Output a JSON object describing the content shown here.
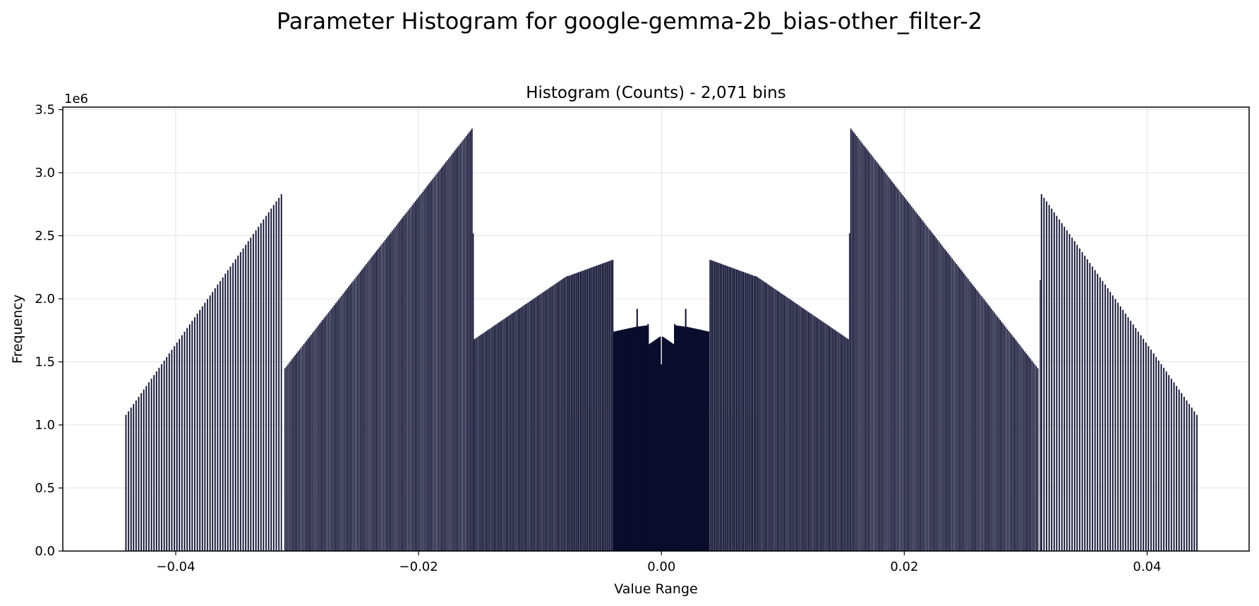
{
  "figure": {
    "suptitle": "Parameter Histogram for google-gemma-2b_bias-other_filter-2"
  },
  "chart_data": {
    "type": "bar",
    "title": "Histogram (Counts) - 2,071 bins",
    "xlabel": "Value Range",
    "ylabel": "Frequency",
    "y_offset_text": "1e6",
    "xlim": [
      -0.0493,
      0.0484
    ],
    "ylim": [
      0,
      3520000
    ],
    "xticks": [
      -0.04,
      -0.02,
      0.0,
      0.02,
      0.04
    ],
    "xtick_labels": [
      "−0.04",
      "−0.02",
      "0.00",
      "0.02",
      "0.04"
    ],
    "yticks": [
      0,
      500000,
      1000000,
      1500000,
      2000000,
      2500000,
      3000000,
      3500000
    ],
    "ytick_labels": [
      "0.0",
      "0.5",
      "1.0",
      "1.5",
      "2.0",
      "2.5",
      "3.0",
      "3.5"
    ],
    "grid": true,
    "bar_color": "#0b0c2e",
    "bar_edge_color": "#b8b8c4",
    "segments": [
      {
        "x_start": -0.0441,
        "x_end": -0.0313,
        "y_start": 1080000,
        "y_end": 2830000,
        "bars": 62,
        "density": "sparse"
      },
      {
        "x_start": -0.0313,
        "x_end": -0.0312,
        "y_start": 2150000,
        "y_end": 2150000,
        "bars": 1,
        "density": "sparse"
      },
      {
        "x_start": -0.031,
        "x_end": -0.0156,
        "y_start": 1450000,
        "y_end": 3350000,
        "bars": 130,
        "density": "dense"
      },
      {
        "x_start": -0.0155,
        "x_end": -0.0155,
        "y_start": 2520000,
        "y_end": 2520000,
        "bars": 1,
        "density": "dense"
      },
      {
        "x_start": -0.0154,
        "x_end": -0.0078,
        "y_start": 1680000,
        "y_end": 2180000,
        "bars": 70,
        "density": "dense"
      },
      {
        "x_start": -0.0077,
        "x_end": -0.004,
        "y_start": 2180000,
        "y_end": 2310000,
        "bars": 40,
        "density": "dense"
      },
      {
        "x_start": -0.0039,
        "x_end": -0.002,
        "y_start": 1740000,
        "y_end": 1780000,
        "bars": 28,
        "density": "solid"
      },
      {
        "x_start": -0.0019,
        "x_end": -0.0011,
        "y_start": 1780000,
        "y_end": 1790000,
        "bars": 12,
        "density": "solid"
      },
      {
        "x_start": -0.001,
        "x_end": -0.0001,
        "y_start": 1640000,
        "y_end": 1700000,
        "bars": 14,
        "density": "solid"
      },
      {
        "x_start": 0.0001,
        "x_end": 0.001,
        "y_start": 1700000,
        "y_end": 1640000,
        "bars": 14,
        "density": "solid"
      },
      {
        "x_start": 0.0011,
        "x_end": 0.0019,
        "y_start": 1790000,
        "y_end": 1780000,
        "bars": 12,
        "density": "solid"
      },
      {
        "x_start": 0.002,
        "x_end": 0.0039,
        "y_start": 1780000,
        "y_end": 1740000,
        "bars": 28,
        "density": "solid"
      },
      {
        "x_start": 0.004,
        "x_end": 0.0077,
        "y_start": 2310000,
        "y_end": 2180000,
        "bars": 40,
        "density": "dense"
      },
      {
        "x_start": 0.0078,
        "x_end": 0.0154,
        "y_start": 2180000,
        "y_end": 1680000,
        "bars": 70,
        "density": "dense"
      },
      {
        "x_start": 0.0155,
        "x_end": 0.0155,
        "y_start": 2520000,
        "y_end": 2520000,
        "bars": 1,
        "density": "dense"
      },
      {
        "x_start": 0.0156,
        "x_end": 0.031,
        "y_start": 3350000,
        "y_end": 1450000,
        "bars": 130,
        "density": "dense"
      },
      {
        "x_start": 0.0312,
        "x_end": 0.0313,
        "y_start": 2150000,
        "y_end": 2150000,
        "bars": 1,
        "density": "sparse"
      },
      {
        "x_start": 0.0313,
        "x_end": 0.0441,
        "y_start": 2830000,
        "y_end": 1080000,
        "bars": 62,
        "density": "sparse"
      }
    ],
    "spikes": [
      {
        "x": -0.002,
        "y": 1920000
      },
      {
        "x": -0.0011,
        "y": 1800000
      },
      {
        "x": 0.0011,
        "y": 1800000
      },
      {
        "x": 0.002,
        "y": 1920000
      }
    ],
    "fills": [
      {
        "x_start": -0.0078,
        "x_end": 0.0078,
        "y_start": 1080000,
        "y_end": 1080000,
        "peak": 1180000
      },
      {
        "x_start": -0.002,
        "x_end": 0.002,
        "y_start": 1480000,
        "y_end": 1480000,
        "peak": 1480000
      }
    ]
  }
}
